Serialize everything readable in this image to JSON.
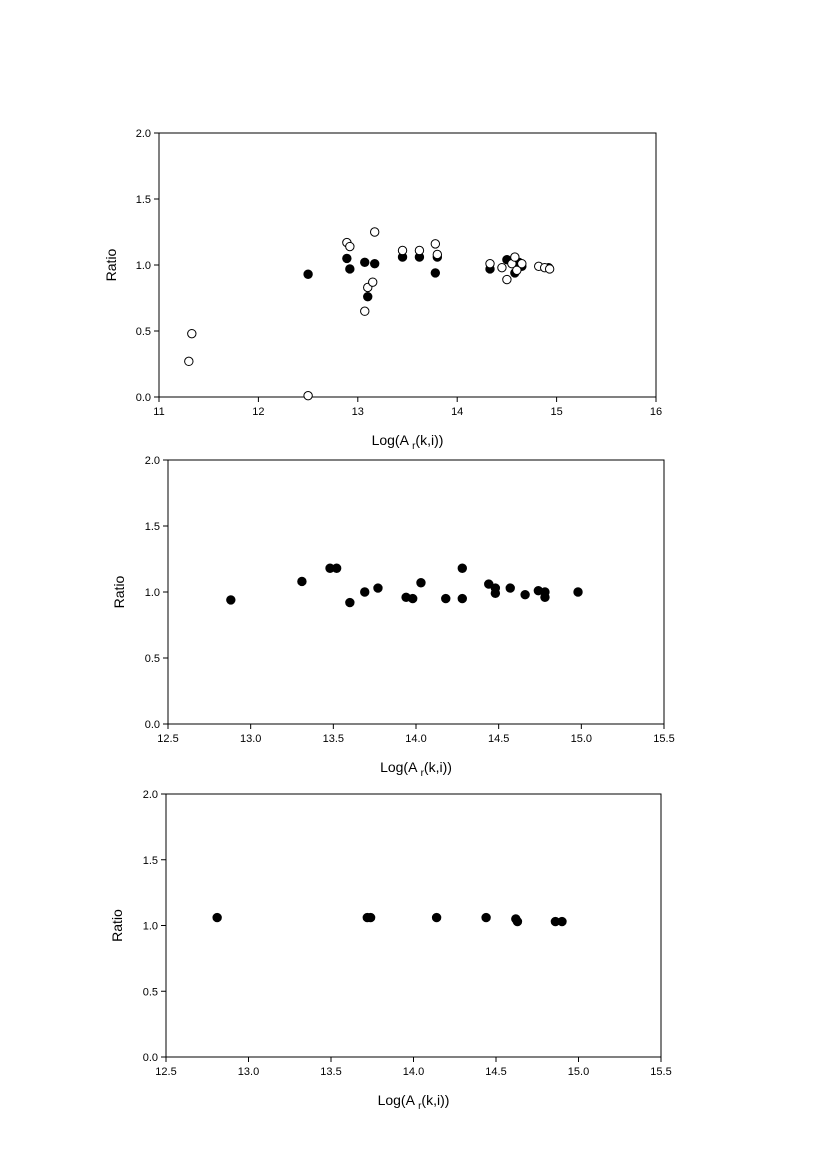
{
  "chart_data": [
    {
      "type": "scatter",
      "title": "",
      "xlabel": "Log(A",
      "xlabel_sub": "r",
      "xlabel_tail": "(k,i))",
      "ylabel": "Ratio",
      "xlim": [
        11,
        16
      ],
      "ylim": [
        0,
        2.0
      ],
      "xticks": [
        "11",
        "12",
        "13",
        "14",
        "15",
        "16"
      ],
      "yticks": [
        "0.0",
        "0.5",
        "1.0",
        "1.5",
        "2.0"
      ],
      "grid": false,
      "series": [
        {
          "marker": "filled-circle",
          "color": "#000000",
          "points": [
            [
              12.5,
              0.93
            ],
            [
              12.89,
              1.05
            ],
            [
              12.92,
              0.97
            ],
            [
              13.07,
              1.02
            ],
            [
              13.1,
              0.76
            ],
            [
              13.17,
              1.01
            ],
            [
              13.45,
              1.06
            ],
            [
              13.62,
              1.06
            ],
            [
              13.78,
              0.94
            ],
            [
              13.8,
              1.06
            ],
            [
              14.33,
              0.97
            ],
            [
              14.5,
              1.04
            ],
            [
              14.55,
              1.03
            ],
            [
              14.58,
              0.94
            ],
            [
              14.62,
              1.02
            ],
            [
              14.65,
              0.99
            ],
            [
              14.92,
              0.98
            ]
          ]
        },
        {
          "marker": "open-circle",
          "color": "#000000",
          "points": [
            [
              11.3,
              0.27
            ],
            [
              11.33,
              0.48
            ],
            [
              12.5,
              0.01
            ],
            [
              12.89,
              1.17
            ],
            [
              12.92,
              1.14
            ],
            [
              13.07,
              0.65
            ],
            [
              13.1,
              0.83
            ],
            [
              13.15,
              0.87
            ],
            [
              13.17,
              1.25
            ],
            [
              13.45,
              1.11
            ],
            [
              13.62,
              1.11
            ],
            [
              13.78,
              1.16
            ],
            [
              13.8,
              1.08
            ],
            [
              14.33,
              1.01
            ],
            [
              14.45,
              0.98
            ],
            [
              14.5,
              0.89
            ],
            [
              14.55,
              1.01
            ],
            [
              14.58,
              1.06
            ],
            [
              14.6,
              0.96
            ],
            [
              14.65,
              1.01
            ],
            [
              14.82,
              0.99
            ],
            [
              14.88,
              0.98
            ],
            [
              14.93,
              0.97
            ]
          ]
        }
      ]
    },
    {
      "type": "scatter",
      "title": "",
      "xlabel": "Log(A",
      "xlabel_sub": "r",
      "xlabel_tail": "(k,i))",
      "ylabel": "Ratio",
      "xlim": [
        12.5,
        15.5
      ],
      "ylim": [
        0,
        2.0
      ],
      "xticks": [
        "12.5",
        "13.0",
        "13.5",
        "14.0",
        "14.5",
        "15.0",
        "15.5"
      ],
      "yticks": [
        "0.0",
        "0.5",
        "1.0",
        "1.5",
        "2.0"
      ],
      "grid": false,
      "series": [
        {
          "marker": "filled-circle",
          "color": "#000000",
          "points": [
            [
              12.88,
              0.94
            ],
            [
              13.31,
              1.08
            ],
            [
              13.48,
              1.18
            ],
            [
              13.52,
              1.18
            ],
            [
              13.6,
              0.92
            ],
            [
              13.69,
              1.0
            ],
            [
              13.77,
              1.03
            ],
            [
              13.94,
              0.96
            ],
            [
              13.98,
              0.95
            ],
            [
              14.03,
              1.07
            ],
            [
              14.18,
              0.95
            ],
            [
              14.28,
              1.18
            ],
            [
              14.28,
              0.95
            ],
            [
              14.44,
              1.06
            ],
            [
              14.48,
              1.03
            ],
            [
              14.48,
              0.99
            ],
            [
              14.57,
              1.03
            ],
            [
              14.66,
              0.98
            ],
            [
              14.74,
              1.01
            ],
            [
              14.78,
              1.0
            ],
            [
              14.78,
              0.96
            ],
            [
              14.98,
              1.0
            ]
          ]
        }
      ]
    },
    {
      "type": "scatter",
      "title": "",
      "xlabel": "Log(A",
      "xlabel_sub": "r",
      "xlabel_tail": "(k,i))",
      "ylabel": "Ratio",
      "xlim": [
        12.5,
        15.5
      ],
      "ylim": [
        0,
        2.0
      ],
      "xticks": [
        "12.5",
        "13.0",
        "13.5",
        "14.0",
        "14.5",
        "15.0",
        "15.5"
      ],
      "yticks": [
        "0.0",
        "0.5",
        "1.0",
        "1.5",
        "2.0"
      ],
      "grid": false,
      "series": [
        {
          "marker": "filled-circle",
          "color": "#000000",
          "points": [
            [
              12.81,
              1.06
            ],
            [
              13.72,
              1.06
            ],
            [
              13.74,
              1.06
            ],
            [
              14.14,
              1.06
            ],
            [
              14.44,
              1.06
            ],
            [
              14.62,
              1.05
            ],
            [
              14.63,
              1.03
            ],
            [
              14.86,
              1.03
            ],
            [
              14.9,
              1.03
            ]
          ]
        }
      ]
    }
  ]
}
